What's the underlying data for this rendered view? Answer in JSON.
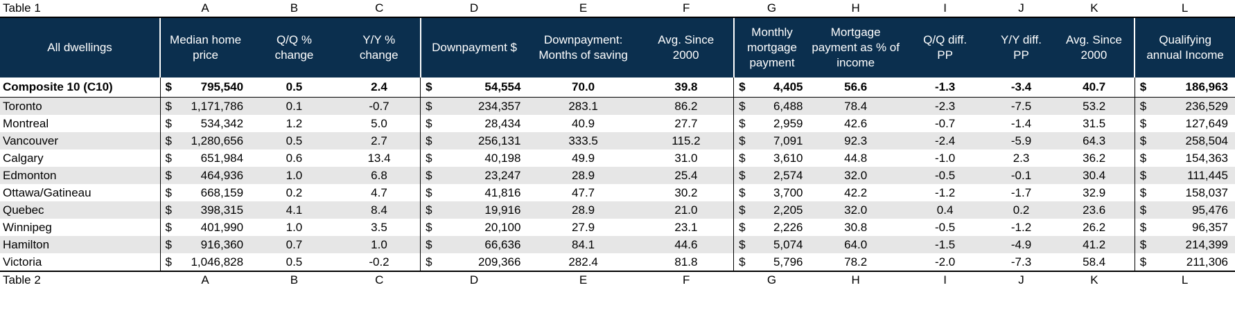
{
  "table1_label": "Table 1",
  "table2_label": "Table 2",
  "column_letters": [
    "A",
    "B",
    "C",
    "D",
    "E",
    "F",
    "G",
    "H",
    "I",
    "J",
    "K",
    "L"
  ],
  "headers": {
    "row_label": "All dwellings",
    "A": [
      "Median home",
      "price"
    ],
    "B": [
      "Q/Q %",
      "change"
    ],
    "C": [
      "Y/Y %",
      "change"
    ],
    "D": [
      "Downpayment $"
    ],
    "E": [
      "Downpayment:",
      "Months of saving"
    ],
    "F": [
      "Avg. Since",
      "2000"
    ],
    "G": [
      "Monthly",
      "mortgage",
      "payment"
    ],
    "H": [
      "Mortgage",
      "payment as % of",
      "income"
    ],
    "I": [
      "Q/Q diff.",
      "PP"
    ],
    "J": [
      "Y/Y diff.",
      "PP"
    ],
    "K": [
      "Avg. Since",
      "2000"
    ],
    "L": [
      "Qualifying",
      "annual Income"
    ]
  },
  "currency_symbol": "$",
  "rows": [
    {
      "name": "Composite 10 (C10)",
      "A": "795,540",
      "B": "0.5",
      "C": "2.4",
      "D": "54,554",
      "E": "70.0",
      "F": "39.8",
      "G": "4,405",
      "H": "56.6",
      "I": "-1.3",
      "J": "-3.4",
      "K": "40.7",
      "L": "186,963"
    },
    {
      "name": "Toronto",
      "A": "1,171,786",
      "B": "0.1",
      "C": "-0.7",
      "D": "234,357",
      "E": "283.1",
      "F": "86.2",
      "G": "6,488",
      "H": "78.4",
      "I": "-2.3",
      "J": "-7.5",
      "K": "53.2",
      "L": "236,529"
    },
    {
      "name": "Montreal",
      "A": "534,342",
      "B": "1.2",
      "C": "5.0",
      "D": "28,434",
      "E": "40.9",
      "F": "27.7",
      "G": "2,959",
      "H": "42.6",
      "I": "-0.7",
      "J": "-1.4",
      "K": "31.5",
      "L": "127,649"
    },
    {
      "name": "Vancouver",
      "A": "1,280,656",
      "B": "0.5",
      "C": "2.7",
      "D": "256,131",
      "E": "333.5",
      "F": "115.2",
      "G": "7,091",
      "H": "92.3",
      "I": "-2.4",
      "J": "-5.9",
      "K": "64.3",
      "L": "258,504"
    },
    {
      "name": "Calgary",
      "A": "651,984",
      "B": "0.6",
      "C": "13.4",
      "D": "40,198",
      "E": "49.9",
      "F": "31.0",
      "G": "3,610",
      "H": "44.8",
      "I": "-1.0",
      "J": "2.3",
      "K": "36.2",
      "L": "154,363"
    },
    {
      "name": "Edmonton",
      "A": "464,936",
      "B": "1.0",
      "C": "6.8",
      "D": "23,247",
      "E": "28.9",
      "F": "25.4",
      "G": "2,574",
      "H": "32.0",
      "I": "-0.5",
      "J": "-0.1",
      "K": "30.4",
      "L": "111,445"
    },
    {
      "name": "Ottawa/Gatineau",
      "A": "668,159",
      "B": "0.2",
      "C": "4.7",
      "D": "41,816",
      "E": "47.7",
      "F": "30.2",
      "G": "3,700",
      "H": "42.2",
      "I": "-1.2",
      "J": "-1.7",
      "K": "32.9",
      "L": "158,037"
    },
    {
      "name": "Quebec",
      "A": "398,315",
      "B": "4.1",
      "C": "8.4",
      "D": "19,916",
      "E": "28.9",
      "F": "21.0",
      "G": "2,205",
      "H": "32.0",
      "I": "0.4",
      "J": "0.2",
      "K": "23.6",
      "L": "95,476"
    },
    {
      "name": "Winnipeg",
      "A": "401,990",
      "B": "1.0",
      "C": "3.5",
      "D": "20,100",
      "E": "27.9",
      "F": "23.1",
      "G": "2,226",
      "H": "30.8",
      "I": "-0.5",
      "J": "-1.2",
      "K": "26.2",
      "L": "96,357"
    },
    {
      "name": "Hamilton",
      "A": "916,360",
      "B": "0.7",
      "C": "1.0",
      "D": "66,636",
      "E": "84.1",
      "F": "44.6",
      "G": "5,074",
      "H": "64.0",
      "I": "-1.5",
      "J": "-4.9",
      "K": "41.2",
      "L": "214,399"
    },
    {
      "name": "Victoria",
      "A": "1,046,828",
      "B": "0.5",
      "C": "-0.2",
      "D": "209,366",
      "E": "282.4",
      "F": "81.8",
      "G": "5,796",
      "H": "78.2",
      "I": "-2.0",
      "J": "-7.3",
      "K": "58.4",
      "L": "211,306"
    }
  ]
}
